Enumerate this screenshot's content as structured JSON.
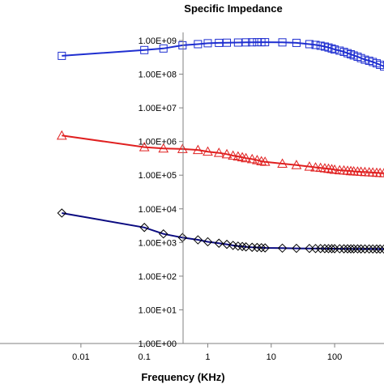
{
  "chart_data": {
    "type": "line",
    "title": "Specific Impedance",
    "xlabel": "Frequency (KHz)",
    "ylabel": "",
    "x_scale": "log",
    "y_scale": "log",
    "xlim": [
      0.0005,
      600
    ],
    "ylim": [
      1,
      1000000000
    ],
    "x_ticks": [
      {
        "value": 0.01,
        "label": "0.01"
      },
      {
        "value": 0.1,
        "label": "0.1"
      },
      {
        "value": 1,
        "label": "1"
      },
      {
        "value": 10,
        "label": "10"
      },
      {
        "value": 100,
        "label": "100"
      }
    ],
    "y_ticks": [
      {
        "value": 1,
        "label": "1.00E+00"
      },
      {
        "value": 10,
        "label": "1.00E+01"
      },
      {
        "value": 100,
        "label": "1.00E+02"
      },
      {
        "value": 1000,
        "label": "1.00E+03"
      },
      {
        "value": 10000,
        "label": "1.00E+04"
      },
      {
        "value": 100000,
        "label": "1.00E+05"
      },
      {
        "value": 1000000,
        "label": "1.00E+06"
      },
      {
        "value": 10000000,
        "label": "1.00E+07"
      },
      {
        "value": 100000000,
        "label": "1.00E+08"
      },
      {
        "value": 1000000000,
        "label": "1.00E+09"
      }
    ],
    "grid": false,
    "legend": "none",
    "series": [
      {
        "marker": "square",
        "color": "#1f2fd0",
        "points": [
          [
            0.005,
            350000000
          ],
          [
            0.1,
            520000000
          ],
          [
            0.2,
            580000000
          ],
          [
            0.4,
            720000000
          ],
          [
            0.7,
            780000000
          ],
          [
            1,
            830000000
          ],
          [
            1.5,
            850000000
          ],
          [
            2,
            860000000
          ],
          [
            3,
            870000000
          ],
          [
            4,
            880000000
          ],
          [
            5,
            885000000
          ],
          [
            6,
            890000000
          ],
          [
            7,
            890000000
          ],
          [
            8,
            890000000
          ],
          [
            15,
            880000000
          ],
          [
            25,
            850000000
          ],
          [
            40,
            780000000
          ],
          [
            50,
            740000000
          ],
          [
            60,
            700000000
          ],
          [
            70,
            660000000
          ],
          [
            80,
            620000000
          ],
          [
            90,
            580000000
          ],
          [
            100,
            540000000
          ],
          [
            120,
            500000000
          ],
          [
            140,
            460000000
          ],
          [
            160,
            420000000
          ],
          [
            180,
            390000000
          ],
          [
            200,
            360000000
          ],
          [
            230,
            330000000
          ],
          [
            260,
            300000000
          ],
          [
            300,
            270000000
          ],
          [
            350,
            250000000
          ],
          [
            400,
            230000000
          ],
          [
            460,
            210000000
          ],
          [
            520,
            190000000
          ],
          [
            600,
            170000000
          ]
        ]
      },
      {
        "marker": "triangle",
        "color": "#e02020",
        "points": [
          [
            0.005,
            1500000
          ],
          [
            0.1,
            680000
          ],
          [
            0.2,
            620000
          ],
          [
            0.4,
            600000
          ],
          [
            0.7,
            560000
          ],
          [
            1,
            500000
          ],
          [
            1.5,
            460000
          ],
          [
            2,
            420000
          ],
          [
            2.5,
            380000
          ],
          [
            3,
            360000
          ],
          [
            3.5,
            340000
          ],
          [
            4,
            320000
          ],
          [
            5,
            300000
          ],
          [
            6,
            280000
          ],
          [
            7,
            260000
          ],
          [
            8,
            250000
          ],
          [
            15,
            220000
          ],
          [
            25,
            200000
          ],
          [
            40,
            180000
          ],
          [
            50,
            170000
          ],
          [
            60,
            165000
          ],
          [
            70,
            160000
          ],
          [
            80,
            155000
          ],
          [
            90,
            150000
          ],
          [
            100,
            145000
          ],
          [
            120,
            140000
          ],
          [
            140,
            138000
          ],
          [
            160,
            135000
          ],
          [
            180,
            132000
          ],
          [
            200,
            130000
          ],
          [
            230,
            128000
          ],
          [
            260,
            126000
          ],
          [
            300,
            124000
          ],
          [
            350,
            122000
          ],
          [
            400,
            120000
          ],
          [
            460,
            118000
          ],
          [
            520,
            116000
          ],
          [
            600,
            115000
          ]
        ]
      },
      {
        "marker": "diamond",
        "color": "#0a0a80",
        "points": [
          [
            0.005,
            7500
          ],
          [
            0.1,
            2800
          ],
          [
            0.2,
            1800
          ],
          [
            0.4,
            1400
          ],
          [
            0.7,
            1200
          ],
          [
            1,
            1050
          ],
          [
            1.5,
            950
          ],
          [
            2,
            880
          ],
          [
            2.5,
            820
          ],
          [
            3,
            780
          ],
          [
            3.5,
            760
          ],
          [
            4,
            740
          ],
          [
            5,
            720
          ],
          [
            6,
            710
          ],
          [
            7,
            700
          ],
          [
            8,
            690
          ],
          [
            15,
            680
          ],
          [
            25,
            670
          ],
          [
            40,
            665
          ],
          [
            50,
            660
          ],
          [
            60,
            660
          ],
          [
            70,
            658
          ],
          [
            80,
            656
          ],
          [
            90,
            655
          ],
          [
            100,
            654
          ],
          [
            120,
            652
          ],
          [
            140,
            650
          ],
          [
            160,
            650
          ],
          [
            180,
            648
          ],
          [
            200,
            648
          ],
          [
            230,
            646
          ],
          [
            260,
            645
          ],
          [
            300,
            644
          ],
          [
            350,
            643
          ],
          [
            400,
            642
          ],
          [
            460,
            640
          ],
          [
            520,
            640
          ],
          [
            600,
            638
          ]
        ]
      }
    ]
  }
}
